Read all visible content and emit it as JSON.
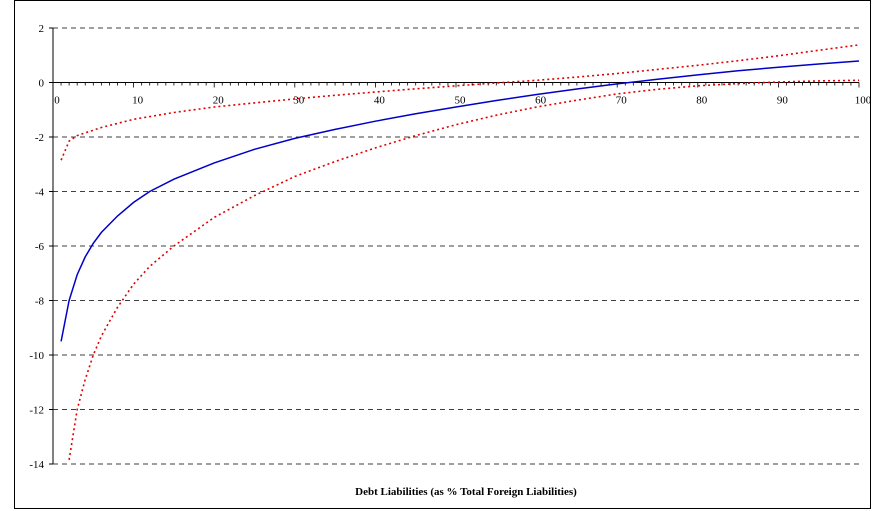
{
  "chart_data": {
    "type": "line",
    "xlabel": "Debt Liabilities (as % Total Foreign Liabilities)",
    "ylabel": "",
    "xlim": [
      0,
      100
    ],
    "ylim": [
      -14,
      2
    ],
    "x_ticks": [
      0,
      10,
      20,
      30,
      40,
      50,
      60,
      70,
      80,
      90,
      100
    ],
    "y_ticks": [
      2,
      0,
      -2,
      -4,
      -6,
      -8,
      -10,
      -12,
      -14
    ],
    "x_tick_labels": [
      "0",
      "10",
      "20",
      "30",
      "40",
      "50",
      "60",
      "70",
      "80",
      "90",
      "100"
    ],
    "y_tick_labels": [
      "2",
      "0",
      "-2",
      "-4",
      "-6",
      "-8",
      "-10",
      "-12",
      "-14"
    ],
    "grid": "horizontal dashed",
    "legend": "none",
    "series": [
      {
        "style": "solid",
        "color": "#0000c8",
        "x": [
          1,
          2,
          3,
          4,
          5,
          6,
          8,
          10,
          12,
          15,
          20,
          25,
          30,
          35,
          40,
          45,
          50,
          55,
          60,
          65,
          70,
          75,
          80,
          85,
          90,
          95,
          100
        ],
        "y": [
          -9.5,
          -8.0,
          -7.05,
          -6.4,
          -5.9,
          -5.5,
          -4.9,
          -4.4,
          -4.0,
          -3.55,
          -2.95,
          -2.45,
          -2.05,
          -1.72,
          -1.42,
          -1.15,
          -0.9,
          -0.66,
          -0.44,
          -0.24,
          -0.05,
          0.12,
          0.28,
          0.43,
          0.56,
          0.68,
          0.79
        ]
      },
      {
        "style": "dotted",
        "color": "#e00000",
        "x": [
          1,
          2,
          3,
          4,
          5,
          6,
          8,
          10,
          12,
          15,
          20,
          25,
          30,
          35,
          40,
          45,
          50,
          55,
          60,
          65,
          70,
          75,
          80,
          85,
          90,
          95,
          100
        ],
        "y": [
          -2.85,
          -2.15,
          -1.95,
          -1.85,
          -1.75,
          -1.65,
          -1.5,
          -1.35,
          -1.25,
          -1.1,
          -0.9,
          -0.75,
          -0.6,
          -0.47,
          -0.35,
          -0.23,
          -0.12,
          -0.02,
          0.08,
          0.2,
          0.33,
          0.48,
          0.63,
          0.8,
          0.98,
          1.18,
          1.38
        ]
      },
      {
        "style": "dotted",
        "color": "#e00000",
        "x": [
          2,
          3,
          4,
          5,
          6,
          8,
          10,
          12,
          15,
          20,
          25,
          30,
          35,
          40,
          45,
          50,
          55,
          60,
          65,
          70,
          75,
          80,
          85,
          90,
          95,
          100
        ],
        "y": [
          -13.85,
          -12.0,
          -10.9,
          -10.0,
          -9.3,
          -8.25,
          -7.4,
          -6.75,
          -6.0,
          -4.95,
          -4.15,
          -3.45,
          -2.9,
          -2.4,
          -1.95,
          -1.55,
          -1.2,
          -0.9,
          -0.65,
          -0.42,
          -0.25,
          -0.12,
          -0.04,
          0.02,
          0.06,
          0.08
        ]
      }
    ]
  }
}
